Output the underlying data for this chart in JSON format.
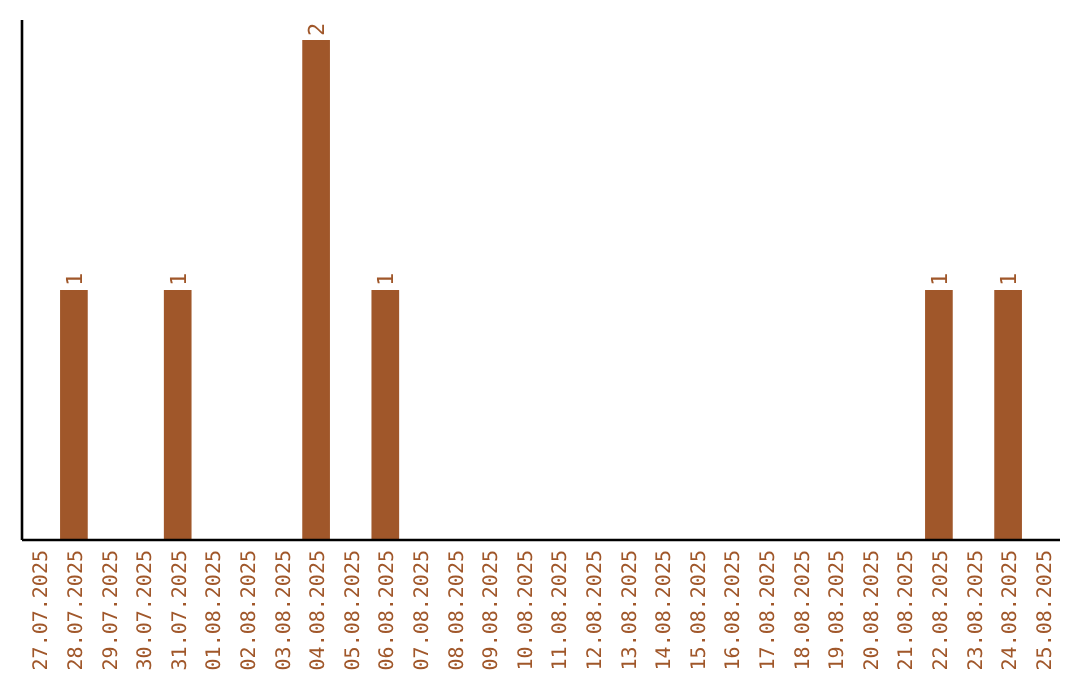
{
  "chart_data": {
    "type": "bar",
    "categories": [
      "27.07.2025",
      "28.07.2025",
      "29.07.2025",
      "30.07.2025",
      "31.07.2025",
      "01.08.2025",
      "02.08.2025",
      "03.08.2025",
      "04.08.2025",
      "05.08.2025",
      "06.08.2025",
      "07.08.2025",
      "08.08.2025",
      "09.08.2025",
      "10.08.2025",
      "11.08.2025",
      "12.08.2025",
      "13.08.2025",
      "14.08.2025",
      "15.08.2025",
      "16.08.2025",
      "17.08.2025",
      "18.08.2025",
      "19.08.2025",
      "20.08.2025",
      "21.08.2025",
      "22.08.2025",
      "23.08.2025",
      "24.08.2025",
      "25.08.2025"
    ],
    "values": [
      0,
      1,
      0,
      0,
      1,
      0,
      0,
      0,
      2,
      0,
      1,
      0,
      0,
      0,
      0,
      0,
      0,
      0,
      0,
      0,
      0,
      0,
      0,
      0,
      0,
      0,
      1,
      0,
      1,
      0
    ],
    "value_labels": [
      null,
      "1",
      null,
      null,
      "1",
      null,
      null,
      null,
      "2",
      null,
      "1",
      null,
      null,
      null,
      null,
      null,
      null,
      null,
      null,
      null,
      null,
      null,
      null,
      null,
      null,
      null,
      "1",
      null,
      "1",
      null
    ],
    "color": "#a0572a",
    "ylim": [
      0,
      2.08
    ],
    "tick_labels": "x"
  }
}
